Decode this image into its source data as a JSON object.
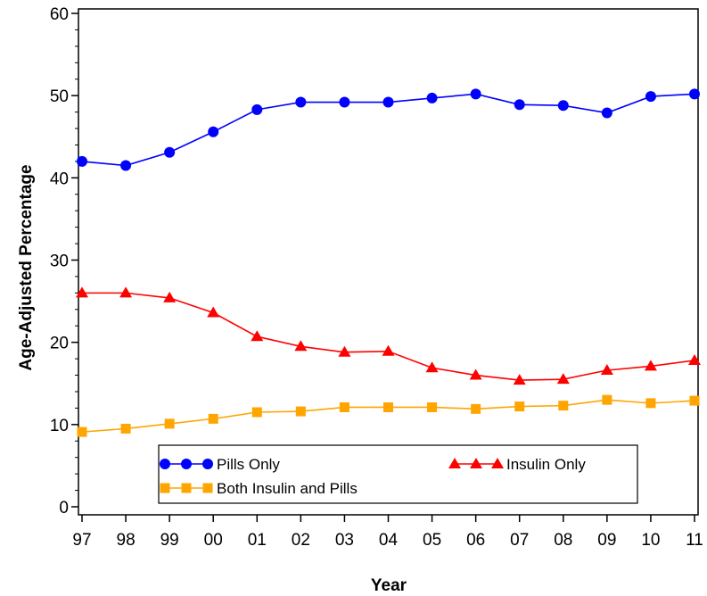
{
  "chart_data": {
    "type": "line",
    "title": "",
    "xlabel": "Year",
    "ylabel": "Age-Adjusted Percentage",
    "categories": [
      "97",
      "98",
      "99",
      "00",
      "01",
      "02",
      "03",
      "04",
      "05",
      "06",
      "07",
      "08",
      "09",
      "10",
      "11"
    ],
    "ylim": [
      0,
      60
    ],
    "yticks": [
      "0",
      "10",
      "20",
      "30",
      "40",
      "50",
      "60"
    ],
    "grid": false,
    "legend_position": "bottom-inside",
    "series": [
      {
        "name": "Pills Only",
        "color": "#0000ff",
        "marker": "circle",
        "values": [
          42.0,
          41.5,
          43.1,
          45.6,
          48.3,
          49.2,
          49.2,
          49.2,
          49.7,
          50.2,
          48.9,
          48.8,
          47.9,
          49.9,
          50.2
        ]
      },
      {
        "name": "Insulin Only",
        "color": "#ff0000",
        "marker": "triangle",
        "values": [
          26.0,
          26.0,
          25.4,
          23.6,
          20.7,
          19.5,
          18.8,
          18.9,
          16.9,
          16.0,
          15.4,
          15.5,
          16.6,
          17.1,
          17.8
        ]
      },
      {
        "name": "Both Insulin and Pills",
        "color": "#ffa500",
        "marker": "square",
        "values": [
          9.1,
          9.5,
          10.1,
          10.7,
          11.5,
          11.6,
          12.1,
          12.1,
          12.1,
          11.9,
          12.2,
          12.3,
          13.0,
          12.6,
          12.9
        ]
      }
    ]
  }
}
